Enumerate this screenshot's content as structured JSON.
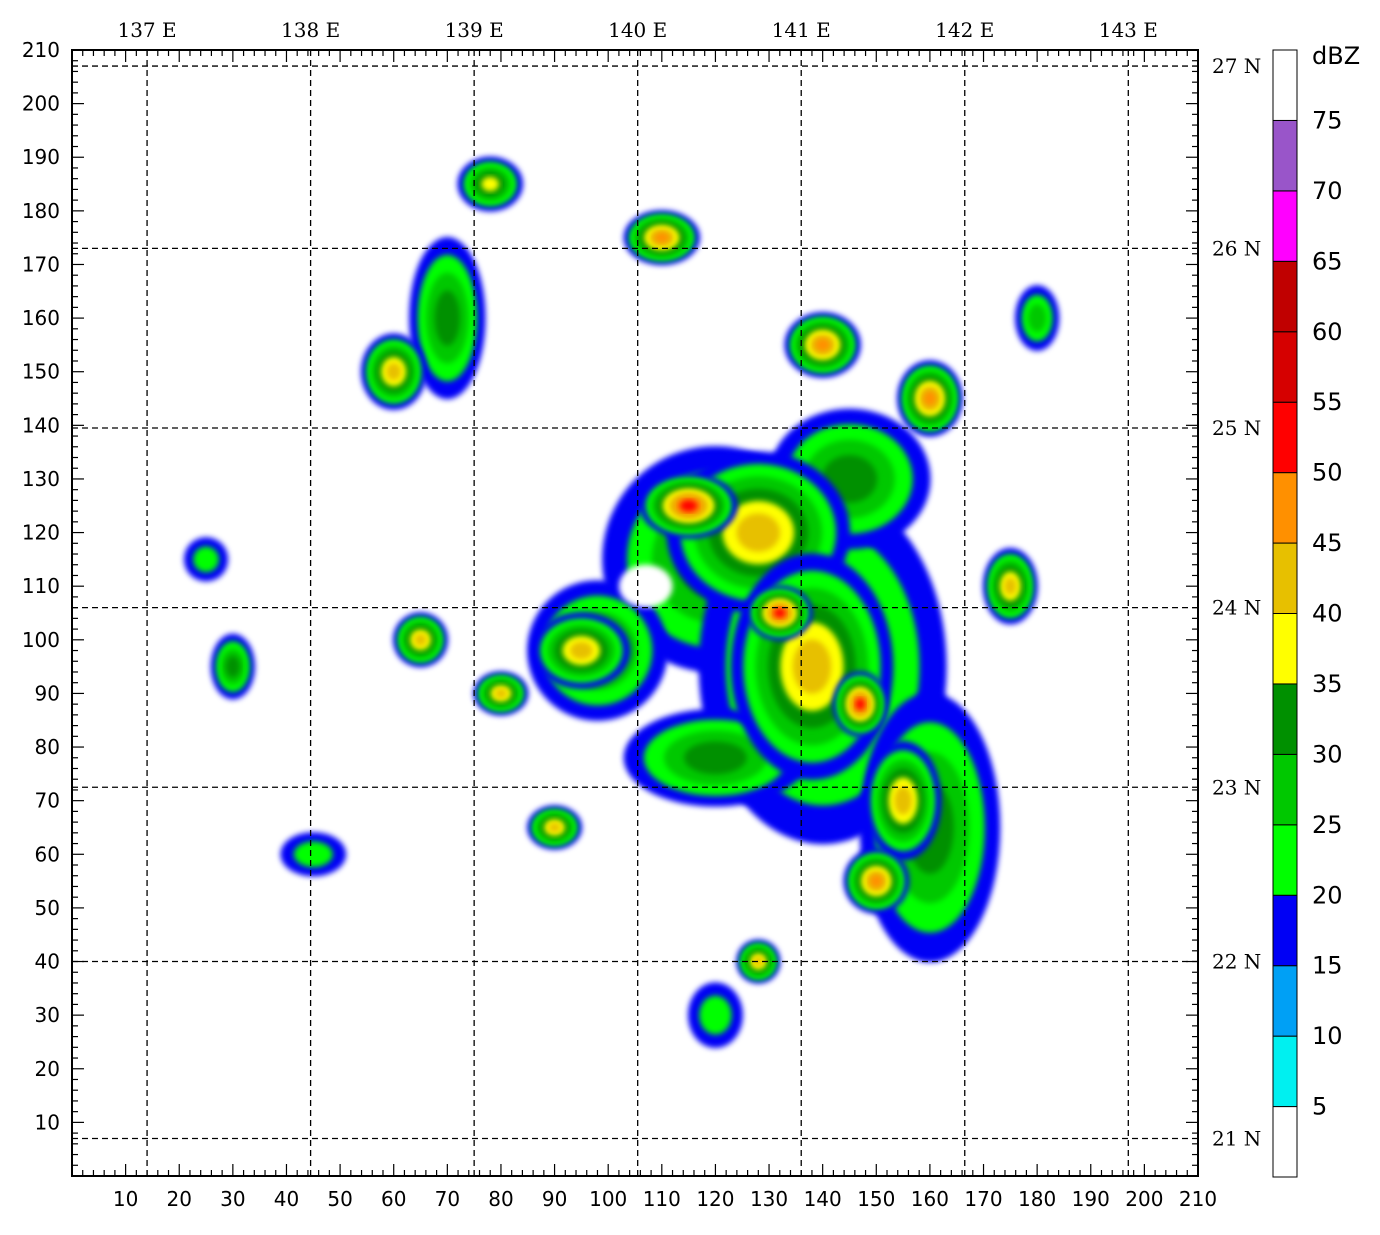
{
  "chart_data": {
    "type": "heatmap",
    "title": "",
    "xlabel": "",
    "ylabel": "",
    "xlim": [
      0,
      210
    ],
    "ylim": [
      0,
      210
    ],
    "x_ticks": [
      10,
      20,
      30,
      40,
      50,
      60,
      70,
      80,
      90,
      100,
      110,
      120,
      130,
      140,
      150,
      160,
      170,
      180,
      190,
      200,
      210
    ],
    "y_ticks": [
      10,
      20,
      30,
      40,
      50,
      60,
      70,
      80,
      90,
      100,
      110,
      120,
      130,
      140,
      150,
      160,
      170,
      180,
      190,
      200,
      210
    ],
    "longitude_lines": [
      {
        "label": "137 E",
        "x": 14
      },
      {
        "label": "138 E",
        "x": 44.5
      },
      {
        "label": "139 E",
        "x": 75
      },
      {
        "label": "140 E",
        "x": 105.5
      },
      {
        "label": "141 E",
        "x": 136
      },
      {
        "label": "142 E",
        "x": 166.5
      },
      {
        "label": "143 E",
        "x": 197
      }
    ],
    "latitude_lines": [
      {
        "label": "21 N",
        "y": 7
      },
      {
        "label": "22 N",
        "y": 40
      },
      {
        "label": "23 N",
        "y": 72.5
      },
      {
        "label": "24 N",
        "y": 106
      },
      {
        "label": "25 N",
        "y": 139.5
      },
      {
        "label": "26 N",
        "y": 173
      },
      {
        "label": "27 N",
        "y": 207
      }
    ],
    "grid": true,
    "colorbar": {
      "unit": "dBZ",
      "tick_labels": [
        "5",
        "10",
        "15",
        "20",
        "25",
        "30",
        "35",
        "40",
        "45",
        "50",
        "55",
        "60",
        "65",
        "70",
        "75"
      ],
      "bins": [
        {
          "min": 0,
          "max": 5,
          "color": "#ffffff"
        },
        {
          "min": 5,
          "max": 10,
          "color": "#00f0f0"
        },
        {
          "min": 10,
          "max": 15,
          "color": "#00a0f5"
        },
        {
          "min": 15,
          "max": 20,
          "color": "#0000f5"
        },
        {
          "min": 20,
          "max": 25,
          "color": "#00ff00"
        },
        {
          "min": 25,
          "max": 30,
          "color": "#00c800"
        },
        {
          "min": 30,
          "max": 35,
          "color": "#009000"
        },
        {
          "min": 35,
          "max": 40,
          "color": "#ffff00"
        },
        {
          "min": 40,
          "max": 45,
          "color": "#e7c000"
        },
        {
          "min": 45,
          "max": 50,
          "color": "#ff9000"
        },
        {
          "min": 50,
          "max": 55,
          "color": "#ff0000"
        },
        {
          "min": 55,
          "max": 60,
          "color": "#d60000"
        },
        {
          "min": 60,
          "max": 65,
          "color": "#c00000"
        },
        {
          "min": 65,
          "max": 70,
          "color": "#ff00ff"
        },
        {
          "min": 70,
          "max": 75,
          "color": "#9955c9"
        },
        {
          "min": 75,
          "max": 80,
          "color": "#ffffff"
        }
      ]
    },
    "typhoon_eye": {
      "x": 107,
      "y": 110
    },
    "echo_cells": [
      {
        "x": 120,
        "y": 115,
        "rx": 20,
        "ry": 20,
        "dbz": 30
      },
      {
        "x": 140,
        "y": 95,
        "rx": 22,
        "ry": 32,
        "dbz": 30
      },
      {
        "x": 160,
        "y": 65,
        "rx": 12,
        "ry": 24,
        "dbz": 30
      },
      {
        "x": 145,
        "y": 130,
        "rx": 14,
        "ry": 12,
        "dbz": 30
      },
      {
        "x": 98,
        "y": 98,
        "rx": 12,
        "ry": 12,
        "dbz": 30
      },
      {
        "x": 120,
        "y": 78,
        "rx": 16,
        "ry": 8,
        "dbz": 30
      },
      {
        "x": 128,
        "y": 120,
        "rx": 16,
        "ry": 14,
        "dbz": 40
      },
      {
        "x": 138,
        "y": 95,
        "rx": 14,
        "ry": 20,
        "dbz": 40
      },
      {
        "x": 95,
        "y": 98,
        "rx": 8,
        "ry": 6,
        "dbz": 40
      },
      {
        "x": 155,
        "y": 70,
        "rx": 6,
        "ry": 10,
        "dbz": 40
      },
      {
        "x": 115,
        "y": 125,
        "rx": 8,
        "ry": 5,
        "dbz": 50
      },
      {
        "x": 132,
        "y": 105,
        "rx": 5,
        "ry": 4,
        "dbz": 50
      },
      {
        "x": 147,
        "y": 88,
        "rx": 4,
        "ry": 5,
        "dbz": 50
      },
      {
        "x": 140,
        "y": 155,
        "rx": 6,
        "ry": 5,
        "dbz": 45
      },
      {
        "x": 160,
        "y": 145,
        "rx": 5,
        "ry": 6,
        "dbz": 45
      },
      {
        "x": 110,
        "y": 175,
        "rx": 6,
        "ry": 4,
        "dbz": 45
      },
      {
        "x": 150,
        "y": 55,
        "rx": 5,
        "ry": 5,
        "dbz": 45
      },
      {
        "x": 78,
        "y": 185,
        "rx": 5,
        "ry": 4,
        "dbz": 35
      },
      {
        "x": 70,
        "y": 160,
        "rx": 6,
        "ry": 14,
        "dbz": 30
      },
      {
        "x": 65,
        "y": 100,
        "rx": 4,
        "ry": 4,
        "dbz": 40
      },
      {
        "x": 60,
        "y": 150,
        "rx": 5,
        "ry": 6,
        "dbz": 40
      },
      {
        "x": 90,
        "y": 65,
        "rx": 4,
        "ry": 3,
        "dbz": 40
      },
      {
        "x": 128,
        "y": 40,
        "rx": 3,
        "ry": 3,
        "dbz": 40
      },
      {
        "x": 175,
        "y": 110,
        "rx": 4,
        "ry": 6,
        "dbz": 40
      },
      {
        "x": 30,
        "y": 95,
        "rx": 3,
        "ry": 5,
        "dbz": 30
      },
      {
        "x": 80,
        "y": 90,
        "rx": 4,
        "ry": 3,
        "dbz": 40
      },
      {
        "x": 180,
        "y": 160,
        "rx": 3,
        "ry": 5,
        "dbz": 25
      },
      {
        "x": 120,
        "y": 30,
        "rx": 4,
        "ry": 5,
        "dbz": 20
      },
      {
        "x": 45,
        "y": 60,
        "rx": 5,
        "ry": 3,
        "dbz": 20
      },
      {
        "x": 25,
        "y": 115,
        "rx": 3,
        "ry": 3,
        "dbz": 20
      }
    ]
  }
}
